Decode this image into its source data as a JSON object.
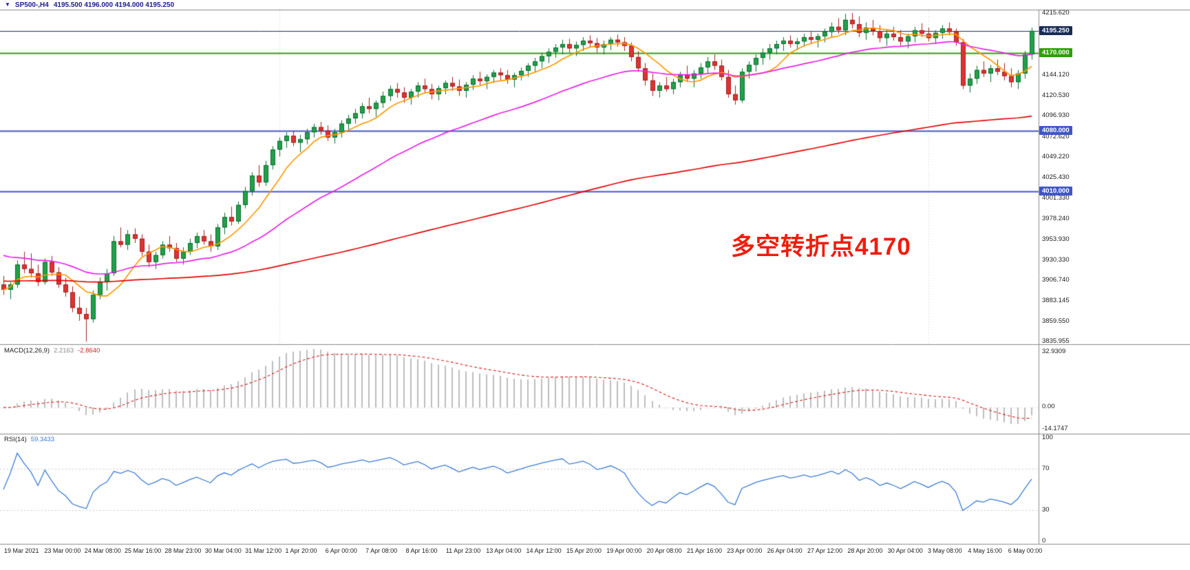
{
  "header": {
    "expand_icon": "▼",
    "symbol": "SP500-,H4",
    "ohlc": "4195.500 4196.000 4194.000 4195.250"
  },
  "annotation": {
    "text": "多空转折点4170",
    "color": "#f01c0c"
  },
  "macd_panel": {
    "label": "MACD(12,26,9)",
    "value_main": "2.2163",
    "value_signal": "-2.8640"
  },
  "rsi_panel": {
    "label": "RSI(14)",
    "value": "59.3433"
  },
  "colors": {
    "bull": "#21a14a",
    "bull_border": "#0d6c2f",
    "bear": "#e03232",
    "bear_border": "#a02020",
    "macd_hist": "#bdbdbd",
    "macd_signal": "#d41c1c",
    "rsi_line": "#3a7bd5",
    "axis_text": "#1c1c1c",
    "panel_border": "#8a8a8a"
  },
  "chart_data": {
    "type": "candlestick",
    "symbol": "SP500-",
    "timeframe": "H4",
    "current_quote": {
      "open": 4195.5,
      "high": 4196.0,
      "low": 4194.0,
      "close": 4195.25
    },
    "price_range": [
      3833,
      4219
    ],
    "price_ticks": [
      "4215.620",
      "4144.120",
      "4120.530",
      "4096.930",
      "4072.620",
      "4049.220",
      "4025.430",
      "4001.330",
      "3978.240",
      "3953.930",
      "3930.330",
      "3906.740",
      "3883.145",
      "3859.550",
      "3835.955"
    ],
    "price_badges": [
      {
        "label": "4195.250",
        "price": 4195.25,
        "bg": "#1a2c55"
      },
      {
        "label": "4170.000",
        "price": 4170.0,
        "bg": "#2f9e0b"
      },
      {
        "label": "4080.000",
        "price": 4080.0,
        "bg": "#4056c8"
      },
      {
        "label": "4010.000",
        "price": 4010.0,
        "bg": "#4056c8"
      }
    ],
    "hlines": [
      {
        "name": "current-price-line",
        "price": 4195.25,
        "color": "#1a2c55",
        "width": 1
      },
      {
        "name": "pivot-line-4170",
        "price": 4170.0,
        "color": "#2f9e0b",
        "width": 2
      },
      {
        "name": "level-line-4080",
        "price": 4080.0,
        "color": "#4056c8",
        "width": 2
      },
      {
        "name": "level-line-4010",
        "price": 4010.0,
        "color": "#4056c8",
        "width": 2
      }
    ],
    "period_separators": [
      40,
      134
    ],
    "ma_lines": [
      {
        "name": "ma-fast",
        "color": "#ff9800",
        "method": "sma",
        "period": 8
      },
      {
        "name": "ma-mid",
        "color": "#e820e8",
        "method": "ema",
        "period": 34,
        "seed": 3938
      },
      {
        "name": "ma-slow",
        "color": "#e60000",
        "method": "ema",
        "period": 165,
        "seed": 3906
      }
    ],
    "indicators": {
      "macd": {
        "fast": 12,
        "slow": 26,
        "signal": 9,
        "main_value": 2.2163,
        "signal_value": -2.864
      },
      "rsi": {
        "period": 14,
        "value": 59.3433,
        "levels": [
          70,
          30
        ]
      }
    },
    "macd_axis_labels": [
      "32.9309",
      "0.00",
      "-14.1747"
    ],
    "rsi_axis_labels": [
      "100",
      "70",
      "30",
      "0"
    ],
    "time_labels": [
      "19 Mar 2021",
      "23 Mar 00:00",
      "24 Mar 08:00",
      "25 Mar 16:00",
      "28 Mar 23:00",
      "30 Mar 04:00",
      "31 Mar 12:00",
      "1 Apr 20:00",
      "6 Apr 00:00",
      "7 Apr 08:00",
      "8 Apr 16:00",
      "11 Apr 23:00",
      "13 Apr 04:00",
      "14 Apr 12:00",
      "15 Apr 20:00",
      "19 Apr 00:00",
      "20 Apr 08:00",
      "21 Apr 16:00",
      "23 Apr 00:00",
      "26 Apr 04:00",
      "27 Apr 12:00",
      "28 Apr 20:00",
      "30 Apr 04:00",
      "3 May 08:00",
      "4 May 16:00",
      "6 May 00:00"
    ],
    "candles": [
      [
        3902,
        3912,
        3890,
        3896
      ],
      [
        3896,
        3905,
        3885,
        3902
      ],
      [
        3902,
        3930,
        3898,
        3925
      ],
      [
        3925,
        3940,
        3915,
        3920
      ],
      [
        3920,
        3938,
        3910,
        3915
      ],
      [
        3915,
        3925,
        3900,
        3905
      ],
      [
        3905,
        3932,
        3902,
        3928
      ],
      [
        3928,
        3935,
        3912,
        3916
      ],
      [
        3916,
        3922,
        3898,
        3902
      ],
      [
        3902,
        3910,
        3888,
        3893
      ],
      [
        3893,
        3900,
        3870,
        3875
      ],
      [
        3875,
        3888,
        3860,
        3868
      ],
      [
        3868,
        3875,
        3836,
        3862
      ],
      [
        3862,
        3895,
        3858,
        3890
      ],
      [
        3890,
        3910,
        3885,
        3905
      ],
      [
        3905,
        3920,
        3895,
        3915
      ],
      [
        3915,
        3958,
        3912,
        3952
      ],
      [
        3952,
        3968,
        3945,
        3948
      ],
      [
        3948,
        3965,
        3942,
        3960
      ],
      [
        3960,
        3967,
        3950,
        3955
      ],
      [
        3955,
        3960,
        3935,
        3940
      ],
      [
        3940,
        3948,
        3922,
        3928
      ],
      [
        3928,
        3940,
        3920,
        3936
      ],
      [
        3936,
        3952,
        3932,
        3948
      ],
      [
        3948,
        3958,
        3940,
        3944
      ],
      [
        3944,
        3950,
        3928,
        3932
      ],
      [
        3932,
        3945,
        3925,
        3940
      ],
      [
        3940,
        3955,
        3936,
        3950
      ],
      [
        3950,
        3962,
        3944,
        3958
      ],
      [
        3958,
        3965,
        3948,
        3952
      ],
      [
        3952,
        3960,
        3940,
        3946
      ],
      [
        3946,
        3972,
        3942,
        3968
      ],
      [
        3968,
        3985,
        3960,
        3980
      ],
      [
        3980,
        3992,
        3970,
        3975
      ],
      [
        3975,
        3998,
        3972,
        3994
      ],
      [
        3994,
        4015,
        3990,
        4010
      ],
      [
        4010,
        4032,
        4005,
        4028
      ],
      [
        4028,
        4040,
        4015,
        4020
      ],
      [
        4020,
        4045,
        4016,
        4040
      ],
      [
        4040,
        4062,
        4035,
        4058
      ],
      [
        4058,
        4072,
        4050,
        4068
      ],
      [
        4068,
        4078,
        4060,
        4074
      ],
      [
        4074,
        4080,
        4062,
        4066
      ],
      [
        4066,
        4075,
        4055,
        4070
      ],
      [
        4070,
        4082,
        4064,
        4078
      ],
      [
        4078,
        4088,
        4072,
        4084
      ],
      [
        4084,
        4090,
        4075,
        4080
      ],
      [
        4080,
        4086,
        4068,
        4072
      ],
      [
        4072,
        4082,
        4065,
        4078
      ],
      [
        4078,
        4092,
        4072,
        4088
      ],
      [
        4088,
        4098,
        4080,
        4094
      ],
      [
        4094,
        4105,
        4088,
        4100
      ],
      [
        4100,
        4112,
        4094,
        4108
      ],
      [
        4108,
        4118,
        4100,
        4105
      ],
      [
        4105,
        4115,
        4096,
        4112
      ],
      [
        4112,
        4125,
        4106,
        4120
      ],
      [
        4120,
        4132,
        4114,
        4128
      ],
      [
        4128,
        4135,
        4118,
        4124
      ],
      [
        4124,
        4130,
        4112,
        4118
      ],
      [
        4118,
        4128,
        4110,
        4125
      ],
      [
        4125,
        4136,
        4118,
        4132
      ],
      [
        4132,
        4140,
        4124,
        4128
      ],
      [
        4128,
        4134,
        4116,
        4122
      ],
      [
        4122,
        4132,
        4115,
        4129
      ],
      [
        4129,
        4138,
        4122,
        4135
      ],
      [
        4135,
        4142,
        4126,
        4131
      ],
      [
        4131,
        4139,
        4120,
        4126
      ],
      [
        4126,
        4136,
        4118,
        4133
      ],
      [
        4133,
        4144,
        4127,
        4140
      ],
      [
        4140,
        4148,
        4132,
        4137
      ],
      [
        4137,
        4145,
        4128,
        4142
      ],
      [
        4142,
        4150,
        4135,
        4147
      ],
      [
        4147,
        4152,
        4138,
        4144
      ],
      [
        4144,
        4150,
        4134,
        4139
      ],
      [
        4139,
        4147,
        4130,
        4144
      ],
      [
        4144,
        4153,
        4138,
        4149
      ],
      [
        4149,
        4158,
        4142,
        4155
      ],
      [
        4155,
        4164,
        4148,
        4160
      ],
      [
        4160,
        4170,
        4152,
        4166
      ],
      [
        4166,
        4175,
        4158,
        4171
      ],
      [
        4171,
        4180,
        4164,
        4176
      ],
      [
        4176,
        4185,
        4168,
        4180
      ],
      [
        4180,
        4186,
        4170,
        4175
      ],
      [
        4175,
        4183,
        4166,
        4179
      ],
      [
        4179,
        4188,
        4172,
        4184
      ],
      [
        4184,
        4190,
        4176,
        4181
      ],
      [
        4181,
        4187,
        4170,
        4176
      ],
      [
        4176,
        4184,
        4168,
        4180
      ],
      [
        4180,
        4188,
        4173,
        4185
      ],
      [
        4185,
        4191,
        4177,
        4182
      ],
      [
        4182,
        4188,
        4172,
        4178
      ],
      [
        4178,
        4182,
        4160,
        4165
      ],
      [
        4165,
        4172,
        4148,
        4152
      ],
      [
        4152,
        4158,
        4132,
        4138
      ],
      [
        4138,
        4146,
        4120,
        4126
      ],
      [
        4126,
        4136,
        4118,
        4132
      ],
      [
        4132,
        4142,
        4125,
        4128
      ],
      [
        4128,
        4140,
        4122,
        4136
      ],
      [
        4136,
        4148,
        4130,
        4144
      ],
      [
        4144,
        4155,
        4136,
        4140
      ],
      [
        4140,
        4150,
        4130,
        4146
      ],
      [
        4146,
        4158,
        4140,
        4153
      ],
      [
        4153,
        4165,
        4146,
        4160
      ],
      [
        4160,
        4168,
        4150,
        4155
      ],
      [
        4155,
        4162,
        4138,
        4142
      ],
      [
        4142,
        4150,
        4118,
        4122
      ],
      [
        4122,
        4132,
        4110,
        4115
      ],
      [
        4115,
        4152,
        4112,
        4148
      ],
      [
        4148,
        4160,
        4140,
        4156
      ],
      [
        4156,
        4168,
        4148,
        4164
      ],
      [
        4164,
        4175,
        4156,
        4170
      ],
      [
        4170,
        4180,
        4162,
        4175
      ],
      [
        4175,
        4184,
        4168,
        4180
      ],
      [
        4180,
        4188,
        4172,
        4184
      ],
      [
        4184,
        4190,
        4176,
        4180
      ],
      [
        4180,
        4187,
        4173,
        4183
      ],
      [
        4183,
        4192,
        4177,
        4188
      ],
      [
        4188,
        4195,
        4180,
        4185
      ],
      [
        4185,
        4192,
        4176,
        4189
      ],
      [
        4189,
        4198,
        4182,
        4194
      ],
      [
        4194,
        4205,
        4188,
        4200
      ],
      [
        4200,
        4210,
        4192,
        4196
      ],
      [
        4196,
        4215,
        4190,
        4208
      ],
      [
        4208,
        4216,
        4198,
        4203
      ],
      [
        4203,
        4212,
        4188,
        4193
      ],
      [
        4193,
        4205,
        4185,
        4199
      ],
      [
        4199,
        4208,
        4190,
        4195
      ],
      [
        4195,
        4202,
        4182,
        4187
      ],
      [
        4187,
        4196,
        4178,
        4192
      ],
      [
        4192,
        4200,
        4184,
        4188
      ],
      [
        4188,
        4196,
        4178,
        4183
      ],
      [
        4183,
        4192,
        4175,
        4189
      ],
      [
        4189,
        4200,
        4182,
        4196
      ],
      [
        4196,
        4204,
        4188,
        4192
      ],
      [
        4192,
        4199,
        4183,
        4187
      ],
      [
        4187,
        4196,
        4180,
        4193
      ],
      [
        4193,
        4202,
        4186,
        4198
      ],
      [
        4198,
        4205,
        4190,
        4194
      ],
      [
        4194,
        4198,
        4178,
        4182
      ],
      [
        4182,
        4186,
        4128,
        4132
      ],
      [
        4132,
        4146,
        4124,
        4140
      ],
      [
        4140,
        4155,
        4134,
        4150
      ],
      [
        4150,
        4160,
        4142,
        4146
      ],
      [
        4146,
        4156,
        4136,
        4152
      ],
      [
        4152,
        4162,
        4144,
        4148
      ],
      [
        4148,
        4158,
        4138,
        4143
      ],
      [
        4143,
        4152,
        4130,
        4136
      ],
      [
        4136,
        4150,
        4128,
        4146
      ],
      [
        4146,
        4172,
        4140,
        4168
      ],
      [
        4168,
        4199,
        4162,
        4195.25
      ]
    ]
  }
}
